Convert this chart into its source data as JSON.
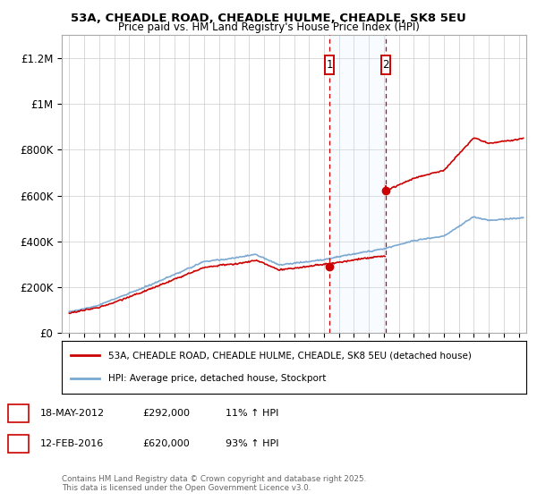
{
  "title_line1": "53A, CHEADLE ROAD, CHEADLE HULME, CHEADLE, SK8 5EU",
  "title_line2": "Price paid vs. HM Land Registry's House Price Index (HPI)",
  "ylabel_ticks": [
    "£0",
    "£200K",
    "£400K",
    "£600K",
    "£800K",
    "£1M",
    "£1.2M"
  ],
  "ytick_values": [
    0,
    200000,
    400000,
    600000,
    800000,
    1000000,
    1200000
  ],
  "ylim": [
    0,
    1300000
  ],
  "xlim_start": 1994.5,
  "xlim_end": 2025.5,
  "hpi_color": "#7aa8d2",
  "price_color": "#cc0000",
  "annotation1": {
    "label": "1",
    "date_str": "18-MAY-2012",
    "price": "£292,000",
    "pct": "11% ↑ HPI",
    "x_year": 2012.38
  },
  "annotation2": {
    "label": "2",
    "date_str": "12-FEB-2016",
    "price": "£620,000",
    "pct": "93% ↑ HPI",
    "x_year": 2016.12
  },
  "legend_red_label": "53A, CHEADLE ROAD, CHEADLE HULME, CHEADLE, SK8 5EU (detached house)",
  "legend_blue_label": "HPI: Average price, detached house, Stockport",
  "footnote": "Contains HM Land Registry data © Crown copyright and database right 2025.\nThis data is licensed under the Open Government Licence v3.0.",
  "background_color": "#ffffff",
  "grid_color": "#cccccc",
  "shade_color": "#ddeeff"
}
